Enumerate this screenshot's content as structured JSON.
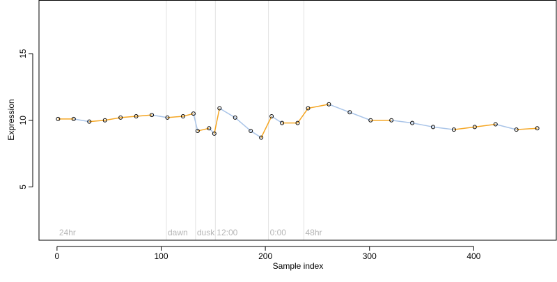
{
  "chart_data": {
    "type": "scatter",
    "title": "",
    "xlabel": "Sample index",
    "ylabel": "Expression",
    "xlim": [
      -17.3,
      479.3
    ],
    "ylim": [
      1.0,
      19.0
    ],
    "xticks": [
      0,
      100,
      200,
      300,
      400
    ],
    "yticks": [
      5,
      10,
      15
    ],
    "grid": false,
    "legend": "none",
    "segment_lines": [
      {
        "x": 105,
        "label": "dawn"
      },
      {
        "x": 133,
        "label": "dusk"
      },
      {
        "x": 152,
        "label": "12:00"
      },
      {
        "x": 203,
        "label": "0:00"
      },
      {
        "x": 237,
        "label": "48hr"
      }
    ],
    "corner_label": "24hr",
    "colors": {
      "points": "#000000",
      "up_segment": "#f5a623",
      "down_segment": "#a9c4e8",
      "divider": "#e2e2e2",
      "phase_label": "#b5b5b5"
    },
    "series": [
      {
        "x": [
          1,
          16,
          31,
          46,
          61,
          76,
          91,
          106,
          121,
          131,
          135,
          146,
          151,
          156,
          171,
          186,
          196,
          206,
          216,
          231,
          241,
          261,
          281,
          301,
          321,
          341,
          361,
          381,
          401,
          421,
          441,
          461
        ],
        "y": [
          10.1,
          10.1,
          9.9,
          10.0,
          10.2,
          10.3,
          10.4,
          10.2,
          10.3,
          10.5,
          9.2,
          9.4,
          9.0,
          10.9,
          10.2,
          9.2,
          8.7,
          10.3,
          9.8,
          9.8,
          10.9,
          11.2,
          10.6,
          10.0,
          10.0,
          9.8,
          9.5,
          9.3,
          9.5,
          9.7,
          9.3,
          9.4
        ]
      }
    ]
  }
}
